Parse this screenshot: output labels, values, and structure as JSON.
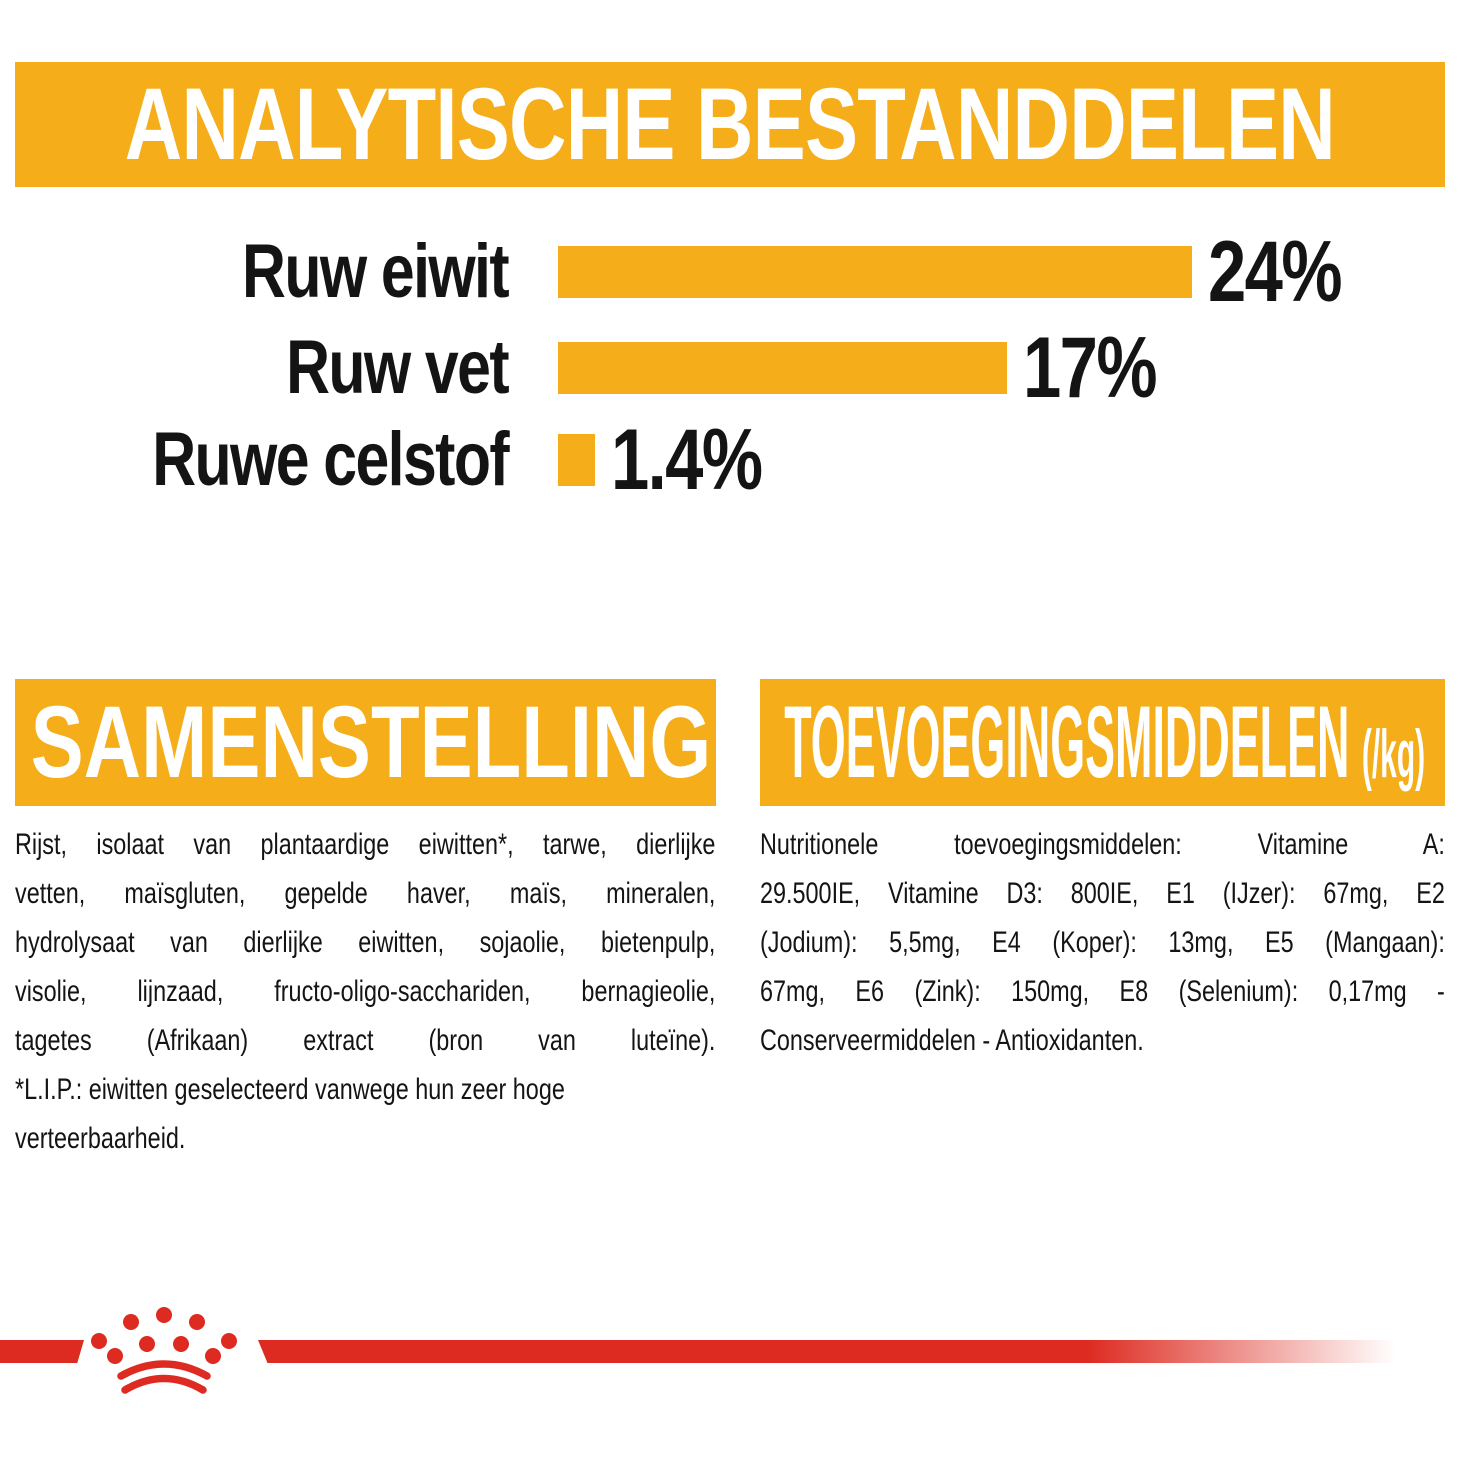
{
  "header": {
    "title": "ANALYTISCHE BESTANDDELEN"
  },
  "chart_data": {
    "type": "bar",
    "orientation": "horizontal",
    "title": "ANALYTISCHE BESTANDDELEN",
    "categories": [
      "Ruw eiwit",
      "Ruw vet",
      "Ruwe celstof"
    ],
    "values": [
      24,
      17,
      1.4
    ],
    "value_labels": [
      "24%",
      "17%",
      "1.4%"
    ],
    "unit": "%",
    "xlim": [
      0,
      26
    ],
    "bar_color": "#F5AD1A",
    "grid": "off",
    "legend": "none"
  },
  "composition": {
    "title": "SAMENSTELLING",
    "lines": [
      {
        "text": "Rijst, isolaat van plantaardige eiwitten*, tarwe, dierlijke",
        "fill": true
      },
      {
        "text": "vetten, maïsgluten, gepelde haver, maïs, mineralen,",
        "fill": true
      },
      {
        "text": "hydrolysaat van dierlijke eiwitten, sojaolie, bietenpulp,",
        "fill": true
      },
      {
        "text": "visolie, lijnzaad, fructo-oligo-sacchariden, bernagieolie,",
        "fill": true
      },
      {
        "text": "tagetes (Afrikaan) extract (bron van luteïne).",
        "fill": true
      },
      {
        "text": "*L.I.P.: eiwitten geselecteerd vanwege hun zeer hoge",
        "fill": false
      },
      {
        "text": "verteerbaarheid.",
        "fill": false
      }
    ]
  },
  "additives": {
    "title": "TOEVOEGINGSMIDDELEN",
    "unit": "(/kg)",
    "lines": [
      {
        "text": "Nutritionele toevoegingsmiddelen: Vitamine A:",
        "fill": true
      },
      {
        "text": "29.500IE, Vitamine D3: 800IE, E1 (IJzer): 67mg, E2",
        "fill": true
      },
      {
        "text": "(Jodium): 5,5mg, E4 (Koper): 13mg, E5 (Mangaan):",
        "fill": true
      },
      {
        "text": "67mg, E6 (Zink): 150mg, E8 (Selenium): 0,17mg -",
        "fill": true
      },
      {
        "text": "Conserveermiddelen - Antioxidanten.",
        "fill": false
      }
    ]
  },
  "icons": {
    "crown": "royal-canin-crown"
  },
  "colors": {
    "amber": "#F5AD1A",
    "red": "#DD2B21",
    "text": "#141414"
  }
}
